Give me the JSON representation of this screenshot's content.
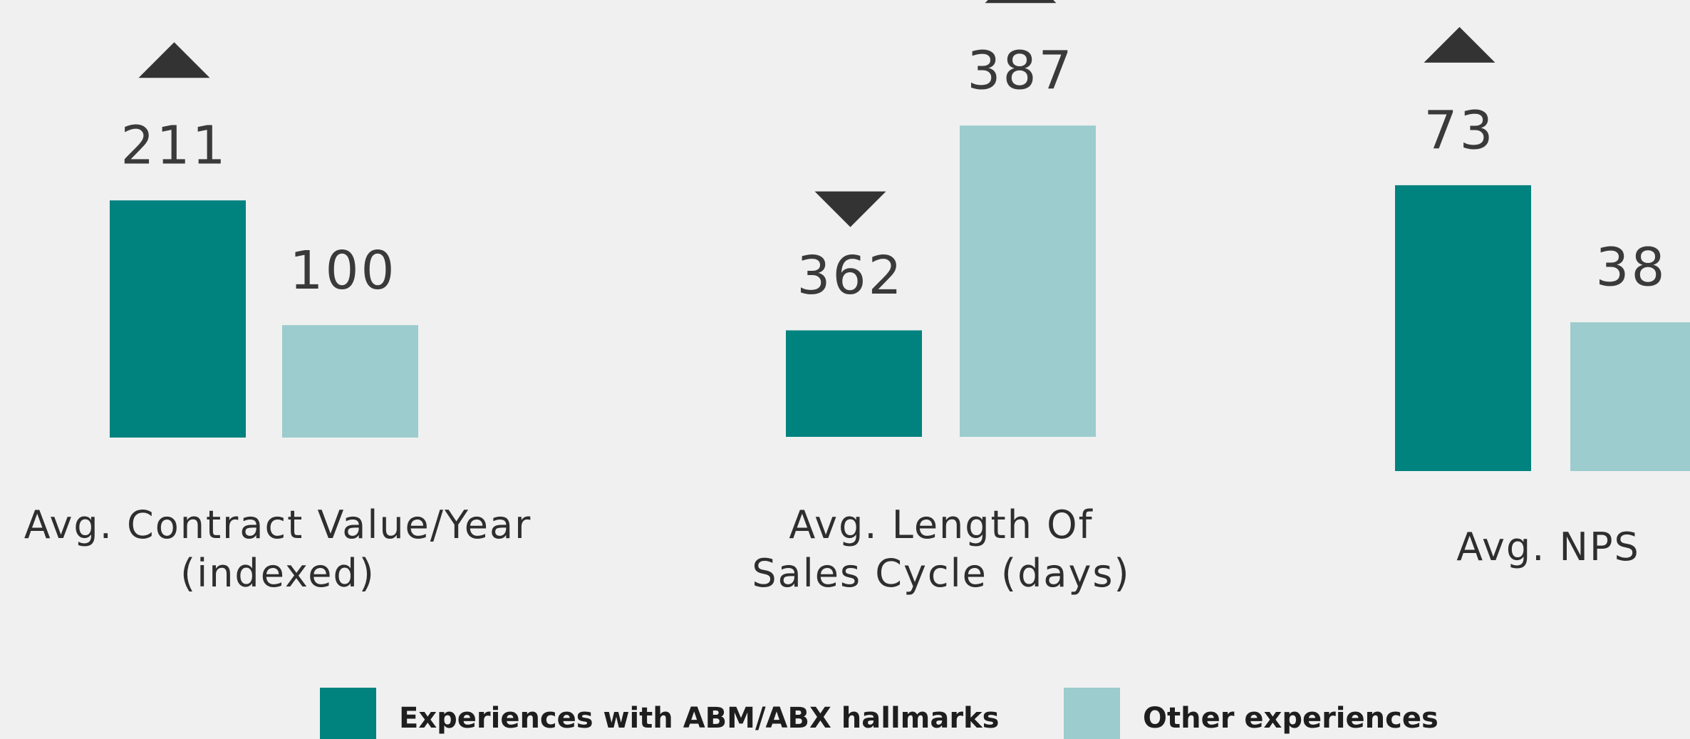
{
  "chart_data": {
    "type": "bar",
    "categories": [
      "Avg. Contract Value/Year\n(indexed)",
      "Avg. Length Of\nSales Cycle (days)",
      "Avg. NPS"
    ],
    "ylims": [
      [
        0,
        317
      ],
      [
        349,
        392.5
      ],
      [
        0,
        91
      ]
    ],
    "series": [
      {
        "name": "Experiences with ABM/ABX hallmarks",
        "color": "#00827f",
        "values": [
          211,
          362,
          73
        ],
        "arrows": [
          "up",
          "down",
          "up"
        ]
      },
      {
        "name": "Other experiences",
        "color": "#9ccccd",
        "values": [
          100,
          387,
          38
        ],
        "arrows": [
          null,
          "up",
          null
        ]
      }
    ]
  }
}
